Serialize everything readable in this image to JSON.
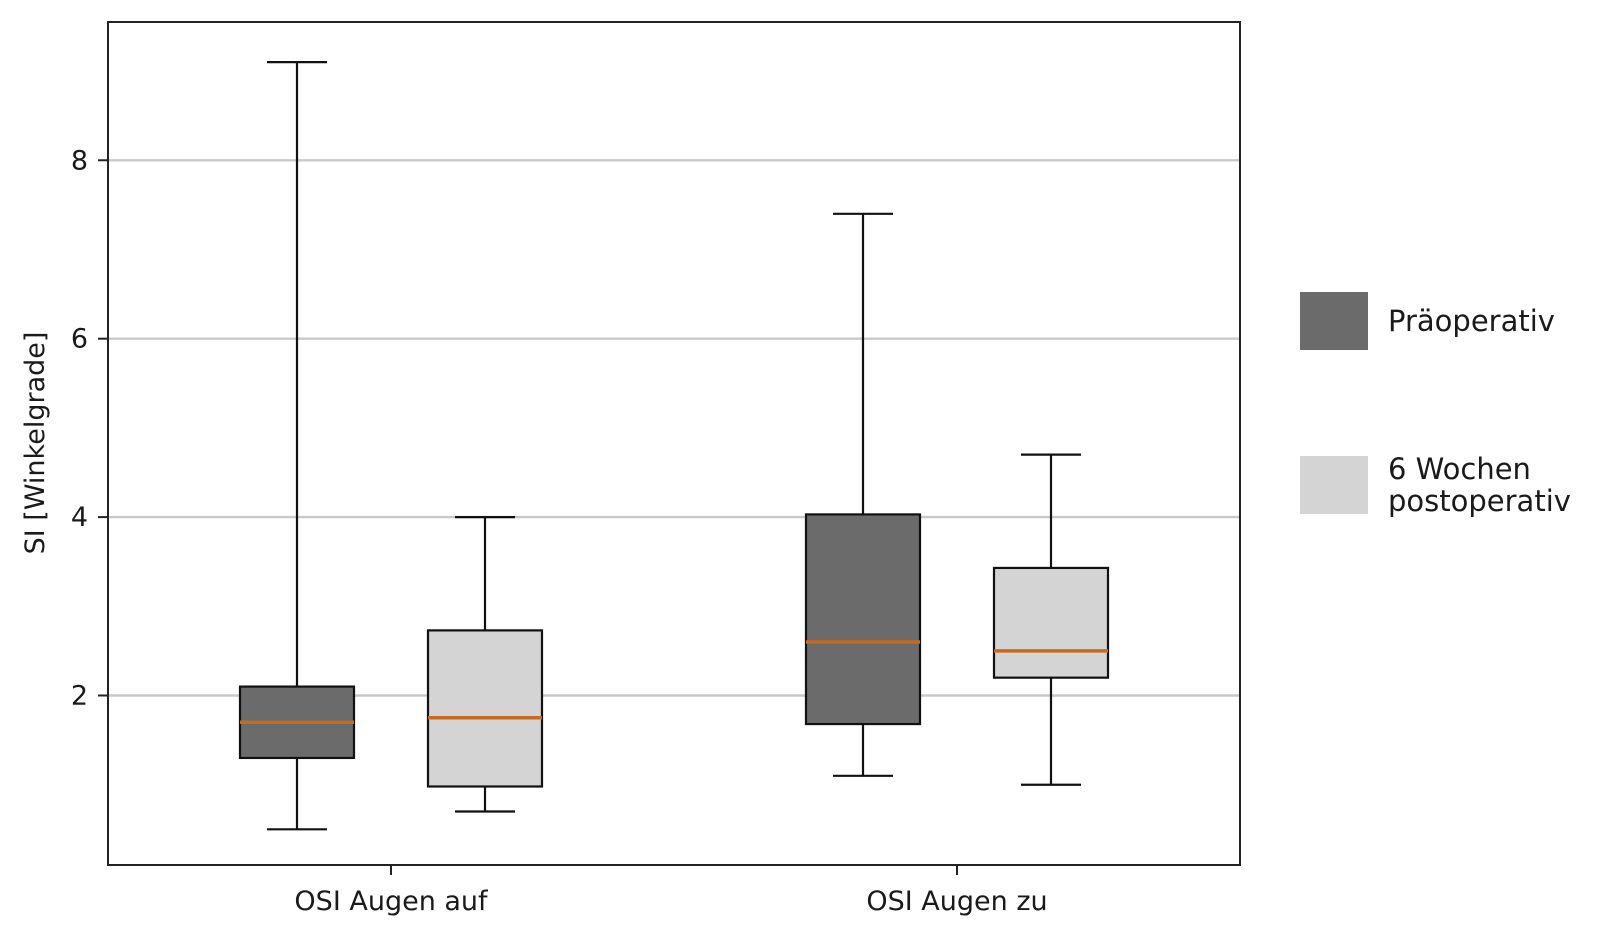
{
  "chart_data": {
    "type": "boxplot",
    "ylabel": "SI [Winkelgrade]",
    "ylim": [
      0.1,
      9.55
    ],
    "yticks": [
      2,
      4,
      6,
      8
    ],
    "grid": "horizontal",
    "legend_position": "right",
    "categories": [
      "OSI Augen auf",
      "OSI Augen zu"
    ],
    "series": [
      {
        "name": "Präoperativ",
        "color": "#6b6b6b",
        "boxes": [
          {
            "whisker_low": 0.5,
            "q1": 1.3,
            "median": 1.7,
            "q3": 2.1,
            "whisker_high": 9.1
          },
          {
            "whisker_low": 1.1,
            "q1": 1.68,
            "median": 2.6,
            "q3": 4.03,
            "whisker_high": 7.4
          }
        ]
      },
      {
        "name": "6 Wochen postoperativ",
        "name_lines": [
          "6 Wochen",
          "postoperativ"
        ],
        "color": "#d4d4d4",
        "boxes": [
          {
            "whisker_low": 0.7,
            "q1": 0.98,
            "median": 1.75,
            "q3": 2.73,
            "whisker_high": 4.0
          },
          {
            "whisker_low": 1.0,
            "q1": 2.2,
            "median": 2.5,
            "q3": 3.43,
            "whisker_high": 4.7
          }
        ]
      }
    ],
    "median_color": "#c86a1e",
    "grid_color": "#c8c8c8"
  }
}
